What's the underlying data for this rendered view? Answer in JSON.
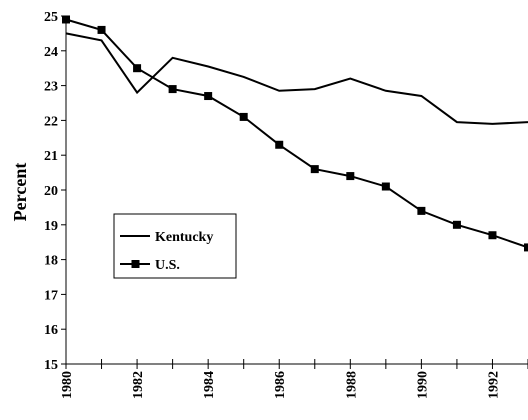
{
  "chart_data": {
    "type": "line",
    "ylabel": "Percent",
    "xlabel": "",
    "title": "",
    "ylim": [
      15,
      25
    ],
    "yticks": [
      15,
      16,
      17,
      18,
      19,
      20,
      21,
      22,
      23,
      24,
      25
    ],
    "xlim": [
      1980,
      1993
    ],
    "xtick_labels": [
      "1980",
      "1982",
      "1984",
      "1986",
      "1988",
      "1990",
      "1992"
    ],
    "grid": false,
    "legend_position": "left",
    "series": [
      {
        "name": "Kentucky",
        "marker": "none",
        "color": "#000000",
        "x": [
          1980,
          1981,
          1982,
          1983,
          1984,
          1985,
          1986,
          1987,
          1988,
          1989,
          1990,
          1991,
          1992,
          1993
        ],
        "values": [
          24.5,
          24.3,
          22.8,
          23.8,
          23.55,
          23.25,
          22.85,
          22.9,
          23.2,
          22.85,
          22.7,
          21.95,
          21.9,
          21.95
        ]
      },
      {
        "name": "U.S.",
        "marker": "square",
        "color": "#000000",
        "x": [
          1980,
          1981,
          1982,
          1983,
          1984,
          1985,
          1986,
          1987,
          1988,
          1989,
          1990,
          1991,
          1992,
          1993
        ],
        "values": [
          24.9,
          24.6,
          23.5,
          22.9,
          22.7,
          22.1,
          21.3,
          20.6,
          20.4,
          20.1,
          19.4,
          19.0,
          18.7,
          18.35
        ]
      }
    ]
  }
}
